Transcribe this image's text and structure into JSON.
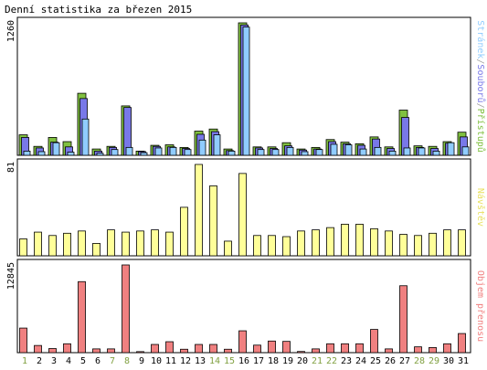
{
  "chart_data": {
    "type": "bar",
    "title": "Denní statistika za březen 2015",
    "categories": [
      "1",
      "2",
      "3",
      "4",
      "5",
      "6",
      "7",
      "8",
      "9",
      "10",
      "11",
      "12",
      "13",
      "14",
      "15",
      "16",
      "17",
      "18",
      "19",
      "20",
      "21",
      "22",
      "23",
      "24",
      "25",
      "26",
      "27",
      "28",
      "29",
      "30",
      "31"
    ],
    "weekend_days": [
      "1",
      "7",
      "8",
      "14",
      "15",
      "21",
      "22",
      "28",
      "29"
    ],
    "colors": {
      "pristupu": "#80c040",
      "souboru": "#7878e8",
      "stranek": "#90ccff",
      "navstev": "#ffff99",
      "objem": "#f08080",
      "weekday_tick": "#000000",
      "weekend_tick": "#80a040"
    },
    "panels": [
      {
        "ymax_label": "1260",
        "ymax": 1260,
        "side_label_parts": [
          {
            "text": "Stránek",
            "color": "#90ccff"
          },
          {
            "text": "/",
            "color": "#a0a0a0"
          },
          {
            "text": "Souborů",
            "color": "#7878e8"
          },
          {
            "text": "/",
            "color": "#a0a0a0"
          },
          {
            "text": "Přístupů",
            "color": "#80c040"
          }
        ],
        "series": [
          {
            "name": "Přístupů",
            "values": [
              195,
              85,
              170,
              130,
              590,
              60,
              85,
              470,
              40,
              95,
              100,
              75,
              230,
              250,
              60,
              1260,
              80,
              80,
              120,
              60,
              75,
              150,
              125,
              110,
              175,
              80,
              430,
              90,
              85,
              130,
              220
            ]
          },
          {
            "name": "Souborů",
            "values": [
              170,
              70,
              125,
              80,
              540,
              40,
              75,
              455,
              35,
              85,
              80,
              65,
              200,
              225,
              45,
              1240,
              70,
              65,
              90,
              50,
              60,
              130,
              110,
              95,
              155,
              65,
              360,
              75,
              65,
              115,
              175
            ]
          },
          {
            "name": "Stránek",
            "values": [
              40,
              35,
              120,
              30,
              345,
              20,
              55,
              75,
              25,
              70,
              75,
              55,
              145,
              195,
              40,
              1220,
              55,
              55,
              75,
              35,
              55,
              105,
              100,
              60,
              75,
              40,
              70,
              70,
              40,
              120,
              80
            ]
          }
        ]
      },
      {
        "ymax_label": "81",
        "ymax": 81,
        "side_label_parts": [
          {
            "text": "Návštěv",
            "color": "#e8e060"
          }
        ],
        "series": [
          {
            "name": "Návštěv",
            "values": [
              15,
              21,
              18,
              20,
              22,
              11,
              23,
              21,
              22,
              23,
              21,
              43,
              81,
              62,
              13,
              73,
              18,
              18,
              17,
              22,
              23,
              25,
              28,
              28,
              24,
              22,
              19,
              18,
              20,
              23,
              23
            ]
          }
        ]
      },
      {
        "ymax_label": "12845",
        "ymax": 12845,
        "side_label_parts": [
          {
            "text": "Objem přenosu",
            "color": "#f08080"
          }
        ],
        "series": [
          {
            "name": "Objem přenosu",
            "values": [
              3600,
              1050,
              600,
              1300,
              10400,
              550,
              550,
              12845,
              150,
              1200,
              1600,
              500,
              1200,
              1200,
              500,
              3200,
              1100,
              1700,
              1650,
              170,
              550,
              1300,
              1300,
              1300,
              3400,
              550,
              9800,
              850,
              750,
              1300,
              2800
            ]
          }
        ]
      }
    ]
  }
}
